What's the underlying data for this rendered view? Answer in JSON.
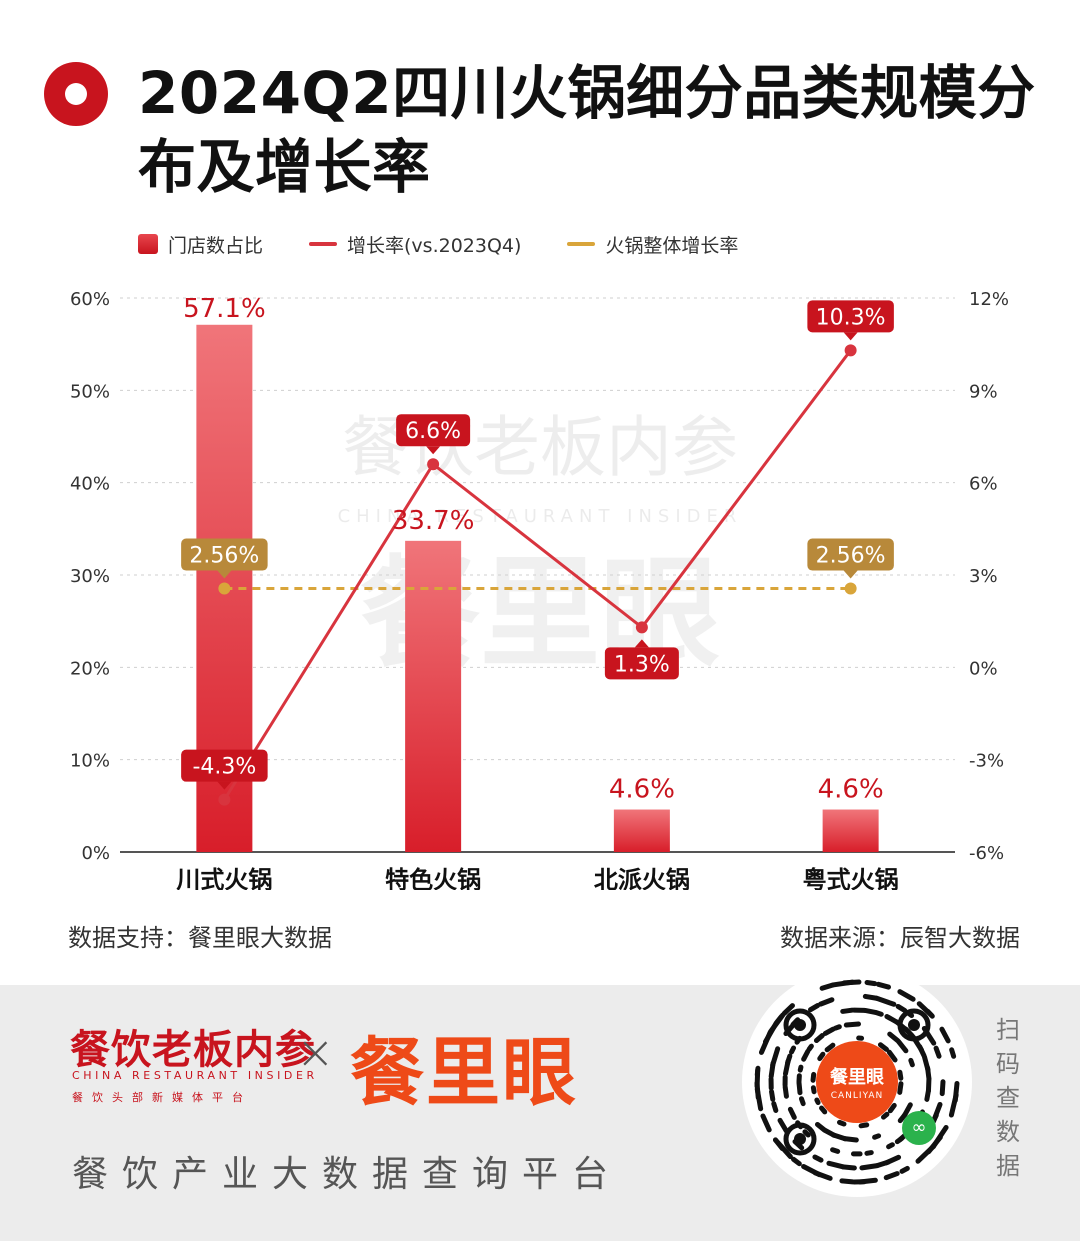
{
  "title": "2024Q2四川火锅细分品类规模分布及增长率",
  "legend": {
    "bar_label": "门店数占比",
    "line_label": "增长率(vs.2023Q4)",
    "dash_label": "火锅整体增长率"
  },
  "watermark": {
    "cn": "餐饮老板内参",
    "en": "CHINA RESTAURANT INSIDER",
    "brand": "餐里眼"
  },
  "chart_data": {
    "type": "bar",
    "categories": [
      "川式火锅",
      "特色火锅",
      "北派火锅",
      "粤式火锅"
    ],
    "series": [
      {
        "name": "门店数占比",
        "type": "bar",
        "axis": "left",
        "values": [
          57.1,
          33.7,
          4.6,
          4.6
        ],
        "labels": [
          "57.1%",
          "33.7%",
          "4.6%",
          "4.6%"
        ]
      },
      {
        "name": "增长率(vs.2023Q4)",
        "type": "line",
        "axis": "right",
        "values": [
          -4.3,
          6.6,
          1.3,
          10.3
        ],
        "labels": [
          "-4.3%",
          "6.6%",
          "1.3%",
          "10.3%"
        ]
      },
      {
        "name": "火锅整体增长率",
        "type": "line-dashed",
        "axis": "right",
        "values": [
          2.56,
          2.56,
          2.56,
          2.56
        ],
        "labels": [
          "2.56%",
          "",
          "",
          "2.56%"
        ]
      }
    ],
    "y_left": {
      "ticks": [
        "0%",
        "10%",
        "20%",
        "30%",
        "40%",
        "50%",
        "60%"
      ],
      "min": 0,
      "max": 60
    },
    "y_right": {
      "ticks": [
        "-6%",
        "-3%",
        "0%",
        "3%",
        "6%",
        "9%",
        "12%"
      ],
      "min": -6,
      "max": 12
    },
    "grid": true,
    "legend_position": "top-left",
    "colors": {
      "bar": "#d81e2a",
      "line": "#d8343e",
      "dashed": "#d9a53a",
      "label_red": "#c8141e",
      "label_gold": "#b8893a"
    }
  },
  "footer": {
    "support": "数据支持：餐里眼大数据",
    "source": "数据来源：辰智大数据"
  },
  "bottom": {
    "logo_cn": "餐饮老板内参",
    "logo_en": "CHINA RESTAURANT INSIDER",
    "logo_sub": "餐饮头部新媒体平台",
    "times": "×",
    "brand": "餐里眼",
    "slogan": "餐饮产业大数据查询平台",
    "qr_center": "餐里眼",
    "qr_center_en": "CANLIYAN",
    "scan_text": "扫码查数据"
  }
}
